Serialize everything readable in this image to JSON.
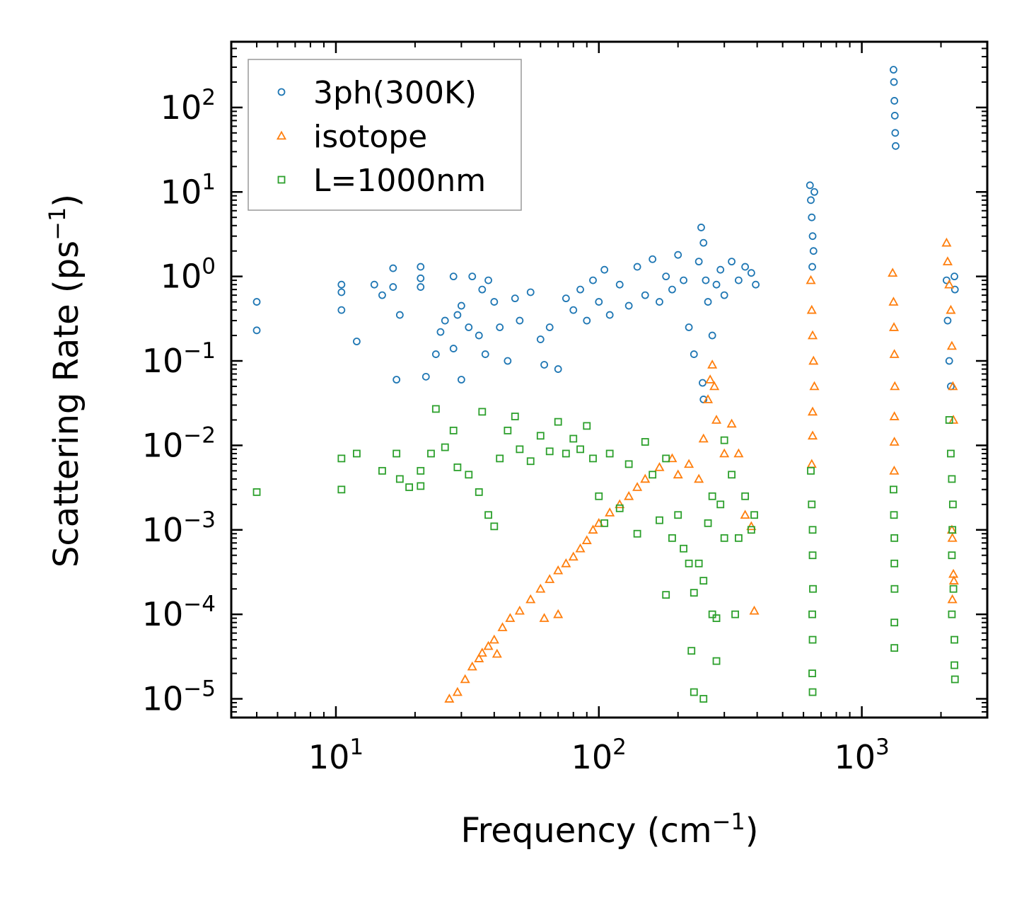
{
  "chart_data": {
    "type": "scatter",
    "title": "",
    "xlabel": "Frequency (cm",
    "xlabel_sup": "−1",
    "xlabel_end": ")",
    "ylabel": "Scattering Rate (ps",
    "ylabel_sup": "−1",
    "ylabel_end": ")",
    "xscale": "log",
    "yscale": "log",
    "xlim": [
      4,
      3000
    ],
    "ylim": [
      6e-06,
      600
    ],
    "legend_position": "top-left",
    "xticks": [
      {
        "value": 10,
        "base": "10",
        "exp": "1"
      },
      {
        "value": 100,
        "base": "10",
        "exp": "2"
      },
      {
        "value": 1000,
        "base": "10",
        "exp": "3"
      }
    ],
    "yticks": [
      {
        "value": 1e-05,
        "base": "10",
        "exp": "−5"
      },
      {
        "value": 0.0001,
        "base": "10",
        "exp": "−4"
      },
      {
        "value": 0.001,
        "base": "10",
        "exp": "−3"
      },
      {
        "value": 0.01,
        "base": "10",
        "exp": "−2"
      },
      {
        "value": 0.1,
        "base": "10",
        "exp": "−1"
      },
      {
        "value": 1,
        "base": "10",
        "exp": "0"
      },
      {
        "value": 10,
        "base": "10",
        "exp": "1"
      },
      {
        "value": 100,
        "base": "10",
        "exp": "2"
      }
    ],
    "series": [
      {
        "name": "3ph(300K)",
        "marker": "circle",
        "color": "#1f77b4",
        "points": [
          [
            5,
            0.5
          ],
          [
            5,
            0.23
          ],
          [
            10.5,
            0.8
          ],
          [
            10.5,
            0.65
          ],
          [
            10.5,
            0.4
          ],
          [
            12,
            0.17
          ],
          [
            14,
            0.8
          ],
          [
            15,
            0.6
          ],
          [
            16.5,
            1.25
          ],
          [
            16.5,
            0.75
          ],
          [
            17,
            0.06
          ],
          [
            17.5,
            0.35
          ],
          [
            21,
            1.3
          ],
          [
            21,
            0.75
          ],
          [
            21,
            0.95
          ],
          [
            22,
            0.065
          ],
          [
            24,
            0.12
          ],
          [
            25,
            0.22
          ],
          [
            26,
            0.3
          ],
          [
            28,
            1.0
          ],
          [
            28,
            0.14
          ],
          [
            29,
            0.35
          ],
          [
            30,
            0.06
          ],
          [
            30,
            0.45
          ],
          [
            32,
            0.25
          ],
          [
            33,
            1.0
          ],
          [
            35,
            0.2
          ],
          [
            36,
            0.7
          ],
          [
            37,
            0.12
          ],
          [
            38,
            0.9
          ],
          [
            40,
            0.5
          ],
          [
            42,
            0.25
          ],
          [
            45,
            0.1
          ],
          [
            48,
            0.55
          ],
          [
            50,
            0.3
          ],
          [
            55,
            0.65
          ],
          [
            60,
            0.18
          ],
          [
            62,
            0.09
          ],
          [
            65,
            0.25
          ],
          [
            70,
            0.08
          ],
          [
            75,
            0.55
          ],
          [
            80,
            0.4
          ],
          [
            85,
            0.7
          ],
          [
            90,
            0.3
          ],
          [
            95,
            0.9
          ],
          [
            100,
            0.5
          ],
          [
            105,
            1.2
          ],
          [
            110,
            0.35
          ],
          [
            120,
            0.8
          ],
          [
            130,
            0.45
          ],
          [
            140,
            1.3
          ],
          [
            150,
            0.6
          ],
          [
            160,
            1.6
          ],
          [
            170,
            0.5
          ],
          [
            180,
            1.0
          ],
          [
            190,
            0.7
          ],
          [
            200,
            1.8
          ],
          [
            210,
            0.9
          ],
          [
            220,
            0.25
          ],
          [
            230,
            0.12
          ],
          [
            240,
            1.5
          ],
          [
            245,
            3.8
          ],
          [
            250,
            2.5
          ],
          [
            255,
            0.9
          ],
          [
            260,
            0.5
          ],
          [
            270,
            0.2
          ],
          [
            280,
            0.8
          ],
          [
            290,
            1.2
          ],
          [
            300,
            0.6
          ],
          [
            320,
            1.5
          ],
          [
            340,
            0.9
          ],
          [
            360,
            1.3
          ],
          [
            380,
            1.1
          ],
          [
            395,
            0.8
          ],
          [
            250,
            0.035
          ],
          [
            248,
            0.055
          ],
          [
            635,
            12
          ],
          [
            640,
            8
          ],
          [
            645,
            5
          ],
          [
            650,
            3
          ],
          [
            655,
            2
          ],
          [
            648,
            1.3
          ],
          [
            660,
            10
          ],
          [
            1320,
            280
          ],
          [
            1325,
            200
          ],
          [
            1330,
            120
          ],
          [
            1335,
            80
          ],
          [
            1340,
            50
          ],
          [
            1345,
            35
          ],
          [
            2100,
            0.9
          ],
          [
            2120,
            0.3
          ],
          [
            2150,
            0.1
          ],
          [
            2180,
            0.05
          ],
          [
            2250,
            1.0
          ],
          [
            2260,
            0.7
          ]
        ]
      },
      {
        "name": "isotope",
        "marker": "triangle",
        "color": "#ff7f0e",
        "points": [
          [
            27,
            1e-05
          ],
          [
            29,
            1.2e-05
          ],
          [
            31,
            1.7e-05
          ],
          [
            33,
            2.4e-05
          ],
          [
            35,
            3e-05
          ],
          [
            38,
            4.2e-05
          ],
          [
            40,
            5e-05
          ],
          [
            43,
            7e-05
          ],
          [
            46,
            9e-05
          ],
          [
            50,
            0.00011
          ],
          [
            55,
            0.00015
          ],
          [
            60,
            0.0002
          ],
          [
            65,
            0.00026
          ],
          [
            70,
            0.00033
          ],
          [
            75,
            0.0004
          ],
          [
            80,
            0.00048
          ],
          [
            85,
            0.0006
          ],
          [
            90,
            0.00075
          ],
          [
            95,
            0.001
          ],
          [
            100,
            0.0012
          ],
          [
            110,
            0.0016
          ],
          [
            120,
            0.002
          ],
          [
            130,
            0.0025
          ],
          [
            140,
            0.0032
          ],
          [
            150,
            0.004
          ],
          [
            170,
            0.0055
          ],
          [
            190,
            0.007
          ],
          [
            200,
            0.0045
          ],
          [
            220,
            0.006
          ],
          [
            240,
            0.004
          ],
          [
            250,
            0.012
          ],
          [
            260,
            0.035
          ],
          [
            265,
            0.06
          ],
          [
            270,
            0.09
          ],
          [
            275,
            0.05
          ],
          [
            280,
            0.02
          ],
          [
            300,
            0.008
          ],
          [
            320,
            0.018
          ],
          [
            340,
            0.008
          ],
          [
            360,
            0.0015
          ],
          [
            380,
            0.0011
          ],
          [
            390,
            0.00011
          ],
          [
            36,
            3.5e-05
          ],
          [
            41,
            3.4e-05
          ],
          [
            62,
            9e-05
          ],
          [
            70,
            0.0001
          ],
          [
            640,
            0.9
          ],
          [
            645,
            0.4
          ],
          [
            650,
            0.2
          ],
          [
            655,
            0.1
          ],
          [
            660,
            0.05
          ],
          [
            650,
            0.025
          ],
          [
            650,
            0.013
          ],
          [
            645,
            0.006
          ],
          [
            1310,
            1.1
          ],
          [
            1320,
            0.5
          ],
          [
            1325,
            0.25
          ],
          [
            1330,
            0.12
          ],
          [
            1335,
            0.05
          ],
          [
            1330,
            0.022
          ],
          [
            1330,
            0.011
          ],
          [
            1328,
            0.005
          ],
          [
            2100,
            2.5
          ],
          [
            2120,
            1.5
          ],
          [
            2150,
            0.8
          ],
          [
            2180,
            0.4
          ],
          [
            2200,
            0.15
          ],
          [
            2220,
            0.05
          ],
          [
            2230,
            0.02
          ],
          [
            2200,
            0.001
          ],
          [
            2210,
            0.0008
          ],
          [
            2230,
            0.0003
          ],
          [
            2240,
            0.00025
          ],
          [
            2210,
            0.00015
          ]
        ]
      },
      {
        "name": "L=1000nm",
        "marker": "square",
        "color": "#2ca02c",
        "points": [
          [
            5,
            0.0028
          ],
          [
            10.5,
            0.007
          ],
          [
            10.5,
            0.003
          ],
          [
            12,
            0.008
          ],
          [
            15,
            0.005
          ],
          [
            17,
            0.008
          ],
          [
            17.5,
            0.004
          ],
          [
            19,
            0.0032
          ],
          [
            21,
            0.005
          ],
          [
            21,
            0.0033
          ],
          [
            23,
            0.008
          ],
          [
            24,
            0.027
          ],
          [
            26,
            0.0095
          ],
          [
            28,
            0.015
          ],
          [
            29,
            0.0055
          ],
          [
            32,
            0.0045
          ],
          [
            35,
            0.0028
          ],
          [
            36,
            0.025
          ],
          [
            38,
            0.0015
          ],
          [
            40,
            0.0011
          ],
          [
            42,
            0.007
          ],
          [
            45,
            0.015
          ],
          [
            48,
            0.022
          ],
          [
            50,
            0.009
          ],
          [
            55,
            0.0065
          ],
          [
            60,
            0.013
          ],
          [
            65,
            0.0085
          ],
          [
            70,
            0.019
          ],
          [
            75,
            0.008
          ],
          [
            80,
            0.012
          ],
          [
            85,
            0.009
          ],
          [
            90,
            0.017
          ],
          [
            95,
            0.007
          ],
          [
            100,
            0.0025
          ],
          [
            105,
            0.0012
          ],
          [
            110,
            0.008
          ],
          [
            120,
            0.0018
          ],
          [
            130,
            0.006
          ],
          [
            140,
            0.0009
          ],
          [
            150,
            0.011
          ],
          [
            160,
            0.0045
          ],
          [
            170,
            0.0013
          ],
          [
            180,
            0.007
          ],
          [
            190,
            0.0008
          ],
          [
            200,
            0.0015
          ],
          [
            210,
            0.0006
          ],
          [
            220,
            0.0004
          ],
          [
            230,
            0.00018
          ],
          [
            240,
            0.0004
          ],
          [
            250,
            0.00025
          ],
          [
            260,
            0.0012
          ],
          [
            270,
            0.0001
          ],
          [
            280,
            9e-05
          ],
          [
            290,
            0.002
          ],
          [
            300,
            0.0008
          ],
          [
            320,
            0.0045
          ],
          [
            340,
            0.0008
          ],
          [
            360,
            0.0025
          ],
          [
            380,
            0.001
          ],
          [
            390,
            0.0015
          ],
          [
            225,
            3.7e-05
          ],
          [
            230,
            1.2e-05
          ],
          [
            280,
            2.8e-05
          ],
          [
            250,
            1e-05
          ],
          [
            270,
            0.0025
          ],
          [
            300,
            0.0115
          ],
          [
            180,
            0.00017
          ],
          [
            330,
            0.0001
          ],
          [
            640,
            0.005
          ],
          [
            645,
            0.002
          ],
          [
            650,
            0.001
          ],
          [
            650,
            0.0005
          ],
          [
            652,
            0.0002
          ],
          [
            648,
            0.0001
          ],
          [
            650,
            5e-05
          ],
          [
            648,
            2e-05
          ],
          [
            650,
            1.2e-05
          ],
          [
            1320,
            0.003
          ],
          [
            1325,
            0.0015
          ],
          [
            1330,
            0.0008
          ],
          [
            1330,
            0.0004
          ],
          [
            1332,
            0.0002
          ],
          [
            1330,
            8e-05
          ],
          [
            1330,
            4e-05
          ],
          [
            2150,
            0.02
          ],
          [
            2180,
            0.008
          ],
          [
            2200,
            0.004
          ],
          [
            2220,
            0.002
          ],
          [
            2210,
            0.001
          ],
          [
            2200,
            0.0005
          ],
          [
            2230,
            0.0002
          ],
          [
            2200,
            0.0001
          ],
          [
            2250,
            5e-05
          ],
          [
            2250,
            2.5e-05
          ],
          [
            2260,
            1.7e-05
          ]
        ]
      }
    ]
  }
}
